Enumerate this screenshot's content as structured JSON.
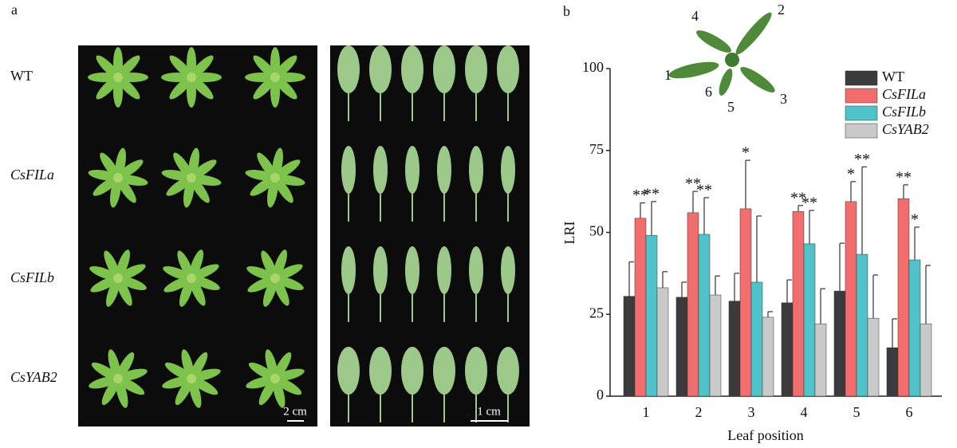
{
  "panel_a": {
    "label": "a",
    "rows": [
      "WT",
      "CsFILa",
      "CsFILb",
      "CsYAB2"
    ],
    "scale_left": "2 cm",
    "scale_right": "1 cm"
  },
  "panel_b": {
    "label": "b",
    "inset_labels": [
      "1",
      "2",
      "3",
      "4",
      "5",
      "6"
    ]
  },
  "chart_data": {
    "type": "bar",
    "x_label": "Leaf position",
    "y_label": "LRI",
    "categories": [
      "1",
      "2",
      "3",
      "4",
      "5",
      "6"
    ],
    "series": [
      {
        "name": "WT",
        "color": "#3b3b3e",
        "values": [
          30.5,
          30.2,
          29,
          28.5,
          32.1,
          14.8
        ],
        "errors": [
          10.5,
          4.6,
          8.5,
          7,
          14.6,
          8.8
        ],
        "significance": [
          null,
          null,
          null,
          null,
          null,
          null
        ]
      },
      {
        "name": "CsFILa",
        "color": "#f26d6d",
        "values": [
          54.3,
          56,
          57.2,
          56.4,
          59.4,
          60.3
        ],
        "errors": [
          4.7,
          6.5,
          14.8,
          1.8,
          6.1,
          4.2
        ],
        "significance": [
          "**",
          "**",
          "*",
          "**",
          "*",
          "**"
        ]
      },
      {
        "name": "CsFILb",
        "color": "#4fc3c9",
        "values": [
          49.1,
          49.4,
          34.8,
          46.5,
          43.3,
          41.6
        ],
        "errors": [
          10.3,
          11.2,
          20.2,
          10.2,
          26.7,
          10
        ],
        "significance": [
          "**",
          "**",
          null,
          "**",
          "**",
          "*"
        ]
      },
      {
        "name": "CsYAB2",
        "color": "#c9c9c9",
        "values": [
          33.1,
          30.9,
          24.1,
          22.1,
          23.8,
          22.1
        ],
        "errors": [
          4.9,
          5.8,
          1.7,
          10.7,
          13.2,
          17.8
        ],
        "significance": [
          null,
          null,
          null,
          null,
          null,
          null
        ]
      }
    ],
    "ylim": [
      0,
      100
    ],
    "yticks": [
      0,
      25,
      50,
      75,
      100
    ],
    "grid": false,
    "legend": "upper right"
  }
}
